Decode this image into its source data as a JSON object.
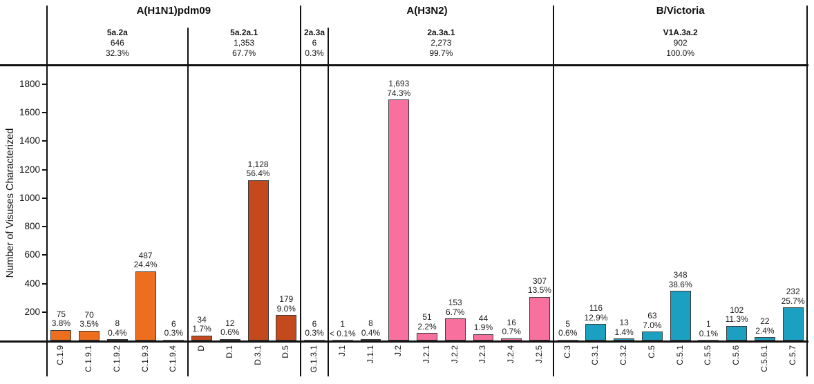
{
  "chart_data": {
    "type": "bar",
    "title": "",
    "xlabel": "",
    "ylabel": "Number of Visuses Characterized",
    "ylim": [
      0,
      1930
    ],
    "yticks": [
      200,
      400,
      600,
      800,
      1000,
      1200,
      1400,
      1600,
      1800
    ],
    "grid": false,
    "legend": "none",
    "groups": [
      {
        "name": "A(H1N1)pdm09",
        "subclades": [
          {
            "name": "5a.2a",
            "total": "646",
            "percent": "32.3%",
            "color": "#ED6E1E",
            "bars": [
              {
                "label": "C.1.9",
                "value": 75,
                "count_label": "75",
                "percent_label": "3.8%"
              },
              {
                "label": "C.1.9.1",
                "value": 70,
                "count_label": "70",
                "percent_label": "3.5%"
              },
              {
                "label": "C.1.9.2",
                "value": 8,
                "count_label": "8",
                "percent_label": "0.4%"
              },
              {
                "label": "C.1.9.3",
                "value": 487,
                "count_label": "487",
                "percent_label": "24.4%"
              },
              {
                "label": "C.1.9.4",
                "value": 6,
                "count_label": "6",
                "percent_label": "0.3%"
              }
            ]
          },
          {
            "name": "5a.2a.1",
            "total": "1,353",
            "percent": "67.7%",
            "color": "#C44A1E",
            "bars": [
              {
                "label": "D",
                "value": 34,
                "count_label": "34",
                "percent_label": "1.7%"
              },
              {
                "label": "D.1",
                "value": 12,
                "count_label": "12",
                "percent_label": "0.6%"
              },
              {
                "label": "D.3.1",
                "value": 1128,
                "count_label": "1,128",
                "percent_label": "56.4%"
              },
              {
                "label": "D.5",
                "value": 179,
                "count_label": "179",
                "percent_label": "9.0%"
              }
            ]
          }
        ]
      },
      {
        "name": "A(H3N2)",
        "subclades": [
          {
            "name": "2a.3a",
            "total": "6",
            "percent": "0.3%",
            "color": "#E05A8C",
            "bars": [
              {
                "label": "G.1.3.1",
                "value": 6,
                "count_label": "6",
                "percent_label": "0.3%"
              }
            ]
          },
          {
            "name": "2a.3a.1",
            "total": "2,273",
            "percent": "99.7%",
            "color": "#F8709E",
            "bars": [
              {
                "label": "J.1",
                "value": 1,
                "count_label": "1",
                "percent_label": "< 0.1%"
              },
              {
                "label": "J.1.1",
                "value": 8,
                "count_label": "8",
                "percent_label": "0.4%"
              },
              {
                "label": "J.2",
                "value": 1693,
                "count_label": "1,693",
                "percent_label": "74.3%"
              },
              {
                "label": "J.2.1",
                "value": 51,
                "count_label": "51",
                "percent_label": "2.2%"
              },
              {
                "label": "J.2.2",
                "value": 153,
                "count_label": "153",
                "percent_label": "6.7%"
              },
              {
                "label": "J.2.3",
                "value": 44,
                "count_label": "44",
                "percent_label": "1.9%"
              },
              {
                "label": "J.2.4",
                "value": 16,
                "count_label": "16",
                "percent_label": "0.7%"
              },
              {
                "label": "J.2.5",
                "value": 307,
                "count_label": "307",
                "percent_label": "13.5%"
              }
            ]
          }
        ]
      },
      {
        "name": "B/Victoria",
        "subclades": [
          {
            "name": "V1A.3a.2",
            "total": "902",
            "percent": "100.0%",
            "color": "#1BA0C2",
            "bars": [
              {
                "label": "C.3",
                "value": 5,
                "count_label": "5",
                "percent_label": "0.6%"
              },
              {
                "label": "C.3.1",
                "value": 116,
                "count_label": "116",
                "percent_label": "12.9%"
              },
              {
                "label": "C.3.2",
                "value": 13,
                "count_label": "13",
                "percent_label": "1.4%"
              },
              {
                "label": "C.5",
                "value": 63,
                "count_label": "63",
                "percent_label": "7.0%"
              },
              {
                "label": "C.5.1",
                "value": 348,
                "count_label": "348",
                "percent_label": "38.6%"
              },
              {
                "label": "C.5.5",
                "value": 1,
                "count_label": "1",
                "percent_label": "0.1%"
              },
              {
                "label": "C.5.6",
                "value": 102,
                "count_label": "102",
                "percent_label": "11.3%"
              },
              {
                "label": "C.5.6.1",
                "value": 22,
                "count_label": "22",
                "percent_label": "2.4%"
              },
              {
                "label": "C.5.7",
                "value": 232,
                "count_label": "232",
                "percent_label": "25.7%"
              }
            ]
          }
        ]
      }
    ]
  }
}
